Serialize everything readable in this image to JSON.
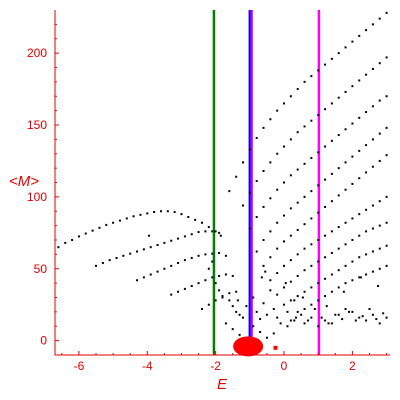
{
  "chart_data": {
    "type": "scatter",
    "xlabel": "E",
    "ylabel": "<M>",
    "xlim": [
      -6.7,
      3.1
    ],
    "ylim": [
      -10,
      230
    ],
    "grid": false,
    "x_ticks": [
      -6,
      -4,
      -2,
      0,
      2
    ],
    "y_ticks": [
      0,
      50,
      100,
      150,
      200
    ],
    "x_tick_labels": [
      "-6",
      "-4",
      "-2",
      "0",
      "2"
    ],
    "y_tick_labels": [
      "0",
      "50",
      "100",
      "150",
      "200"
    ],
    "point_color": "#000000",
    "vertical_lines": [
      {
        "x": -2.05,
        "color": "#008000"
      },
      {
        "x": -1.0,
        "color": "#0000ff"
      },
      {
        "x": -0.95,
        "color": "#b000ff"
      },
      {
        "x": 1.02,
        "color": "#ff00ff"
      }
    ],
    "blobs": [
      {
        "x": -1.05,
        "y": -4,
        "color": "#ff0000"
      },
      {
        "x": -0.25,
        "y": -5,
        "color": "#ff0000"
      }
    ],
    "point_series": [
      {
        "x": [
          -6.6,
          -6.4,
          -6.2,
          -6.0,
          -5.8,
          -5.6,
          -5.4,
          -5.2,
          -5.0,
          -4.8,
          -4.6,
          -4.4,
          -4.2,
          -4.0,
          -3.8,
          -3.6,
          -3.4,
          -3.2,
          -3.0,
          -2.8,
          -2.6,
          -2.4,
          -2.2,
          -2.0,
          -1.85
        ],
        "y": [
          65,
          68,
          70,
          72.5,
          74.5,
          76.5,
          78.5,
          80.5,
          82,
          83.5,
          85,
          86.5,
          87.5,
          88.5,
          89.5,
          90,
          90,
          89.5,
          88,
          86,
          84,
          82,
          79,
          76,
          73
        ]
      },
      {
        "x": [
          -5.5,
          -5.3,
          -5.1,
          -4.9,
          -4.7,
          -4.5,
          -4.3,
          -4.1,
          -3.9,
          -3.7,
          -3.5,
          -3.3,
          -3.1,
          -2.9,
          -2.7,
          -2.5,
          -2.3,
          -2.1,
          -1.9
        ],
        "y": [
          52,
          54,
          56,
          57.5,
          59,
          60.5,
          62,
          63.5,
          65,
          66.5,
          68,
          69.5,
          71,
          72.5,
          74,
          75.5,
          76,
          76,
          75
        ]
      },
      {
        "x": [
          -4.3,
          -4.1,
          -3.9,
          -3.7,
          -3.5,
          -3.3,
          -3.1,
          -2.9,
          -2.7,
          -2.5,
          -2.3,
          -2.1,
          -1.9,
          -1.7
        ],
        "y": [
          42,
          44,
          46,
          48,
          50,
          52,
          54,
          56,
          57.5,
          59,
          60,
          60.5,
          61,
          59
        ]
      },
      {
        "x": [
          -3.3,
          -3.1,
          -2.9,
          -2.7,
          -2.5,
          -2.3,
          -2.1,
          -1.9,
          -1.7,
          -1.5
        ],
        "y": [
          32,
          34,
          36,
          38,
          40,
          42,
          44,
          45,
          46,
          45
        ]
      },
      {
        "x": [
          -2.4,
          -2.2,
          -2.0,
          -1.8,
          -1.6,
          -1.4
        ],
        "y": [
          22,
          25,
          28,
          31,
          33,
          34
        ]
      },
      {
        "x": [
          -1.6,
          -1.4,
          -1.2,
          -1.0,
          -0.8,
          -0.6,
          -0.4,
          -0.2,
          0.0,
          0.2,
          0.4,
          0.6,
          0.8,
          1.0,
          1.2,
          1.4,
          1.6,
          1.8,
          2.0,
          2.2,
          2.4,
          2.6,
          2.8,
          3.0
        ],
        "y": [
          104,
          114,
          124,
          133,
          141,
          148,
          154,
          160,
          165,
          170,
          175,
          180,
          184,
          188,
          192,
          196,
          200,
          204,
          208,
          212,
          216,
          220,
          224,
          228
        ]
      },
      {
        "x": [
          -1.2,
          -1.0,
          -0.8,
          -0.6,
          -0.4,
          -0.2,
          0.0,
          0.2,
          0.4,
          0.6,
          0.8,
          1.0,
          1.2,
          1.4,
          1.6,
          1.8,
          2.0,
          2.2,
          2.4,
          2.6,
          2.8,
          3.0
        ],
        "y": [
          94,
          103,
          111,
          118,
          124,
          130,
          135,
          140,
          145,
          149,
          153,
          157,
          161,
          165,
          169,
          173,
          177,
          181,
          185,
          189,
          193,
          197
        ]
      },
      {
        "x": [
          -1.0,
          -0.8,
          -0.6,
          -0.4,
          -0.2,
          0.0,
          0.2,
          0.4,
          0.6,
          0.8,
          1.0,
          1.2,
          1.4,
          1.6,
          1.8,
          2.0,
          2.2,
          2.4,
          2.6,
          2.8,
          3.0
        ],
        "y": [
          78,
          86,
          93,
          99,
          105,
          110,
          115,
          119,
          123,
          127,
          131,
          135,
          139,
          143,
          147,
          151,
          155,
          159,
          163,
          167,
          170
        ]
      },
      {
        "x": [
          -0.8,
          -0.6,
          -0.4,
          -0.2,
          0.0,
          0.2,
          0.4,
          0.6,
          0.8,
          1.0,
          1.2,
          1.4,
          1.6,
          1.8,
          2.0,
          2.2,
          2.4,
          2.6,
          2.8,
          3.0
        ],
        "y": [
          62,
          70,
          76,
          82,
          87,
          92,
          96,
          100,
          104,
          108,
          112,
          116,
          120,
          124,
          128,
          132,
          136,
          140,
          144,
          148
        ]
      },
      {
        "x": [
          -0.6,
          -0.4,
          -0.2,
          0.0,
          0.2,
          0.4,
          0.6,
          0.8,
          1.0,
          1.2,
          1.4,
          1.6,
          1.8,
          2.0,
          2.2,
          2.4,
          2.6,
          2.8,
          3.0
        ],
        "y": [
          52,
          58,
          64,
          69,
          73,
          77,
          81,
          85,
          89,
          93,
          97,
          101,
          105,
          109,
          113,
          117,
          121,
          125,
          129
        ]
      },
      {
        "x": [
          -0.4,
          -0.2,
          0.0,
          0.2,
          0.4,
          0.6,
          0.8,
          1.0,
          1.2,
          1.4,
          1.6,
          1.8,
          2.0,
          2.2,
          2.4,
          2.6,
          2.8,
          3.0
        ],
        "y": [
          42,
          47,
          52,
          56,
          60,
          64,
          67,
          70,
          73,
          76,
          79,
          82,
          85,
          88,
          91,
          94,
          97,
          100
        ]
      },
      {
        "x": [
          -0.2,
          0.0,
          0.2,
          0.4,
          0.6,
          0.8,
          1.0,
          1.2,
          1.4,
          1.6,
          1.8,
          2.0,
          2.2,
          2.4,
          2.6,
          2.8,
          3.0
        ],
        "y": [
          32,
          37,
          41,
          45,
          49,
          52,
          55,
          58,
          61,
          64,
          67,
          70,
          73,
          76,
          78,
          80,
          82
        ]
      },
      {
        "x": [
          0.0,
          0.2,
          0.4,
          0.6,
          0.8,
          1.0,
          1.2,
          1.4,
          1.6,
          1.8,
          2.0,
          2.2,
          2.4,
          2.6,
          2.8,
          3.0
        ],
        "y": [
          25,
          28,
          31,
          34,
          37,
          40,
          43,
          46,
          49,
          52,
          55,
          58,
          60,
          62,
          64,
          66
        ]
      },
      {
        "x": [
          0.4,
          0.6,
          0.8,
          1.0,
          1.2,
          1.4,
          1.6,
          1.8,
          2.0,
          2.2,
          2.4,
          2.6,
          2.8,
          3.0
        ],
        "y": [
          20,
          22,
          25,
          28,
          31,
          34,
          37,
          40,
          42,
          44,
          46,
          48,
          50,
          52
        ]
      },
      {
        "x": [
          -3.95,
          -2.2,
          -2.1,
          -2.0,
          -1.9,
          -1.8,
          -1.6,
          -1.5,
          -1.4,
          -1.3,
          -1.2,
          -1.1,
          -0.9,
          -0.8,
          -0.7,
          -0.6,
          -0.5,
          -0.4,
          -0.3,
          -0.2,
          -0.1,
          0.1,
          0.2,
          0.3,
          0.5,
          0.7,
          0.9,
          1.1,
          1.3,
          1.5,
          1.7,
          1.9,
          2.1,
          2.3,
          2.5,
          2.7,
          2.9,
          -1.7,
          -1.5,
          -1.3,
          -0.9,
          -0.7,
          -0.5,
          -0.3,
          0.1,
          0.3,
          0.6,
          0.8,
          1.0,
          1.2,
          1.4,
          1.6,
          1.8,
          2.0,
          2.2,
          2.4,
          2.6,
          2.8,
          3.0,
          -0.55,
          0.05,
          0.55,
          1.25,
          1.75,
          2.25,
          2.75,
          -1.35,
          -0.65,
          0.35
        ],
        "y": [
          73,
          50,
          55,
          40,
          35,
          30,
          28,
          24,
          20,
          18,
          16,
          24,
          30,
          20,
          15,
          26,
          18,
          35,
          22,
          16,
          12,
          20,
          14,
          28,
          18,
          14,
          22,
          16,
          12,
          18,
          15,
          20,
          14,
          17,
          22,
          15,
          19,
          12,
          8,
          4,
          10,
          6,
          2,
          5,
          10,
          14,
          12,
          16,
          10,
          14,
          12,
          18,
          22,
          20,
          16,
          14,
          18,
          12,
          16,
          48,
          40,
          30,
          24,
          34,
          44,
          38,
          28,
          44,
          16
        ]
      }
    ]
  }
}
